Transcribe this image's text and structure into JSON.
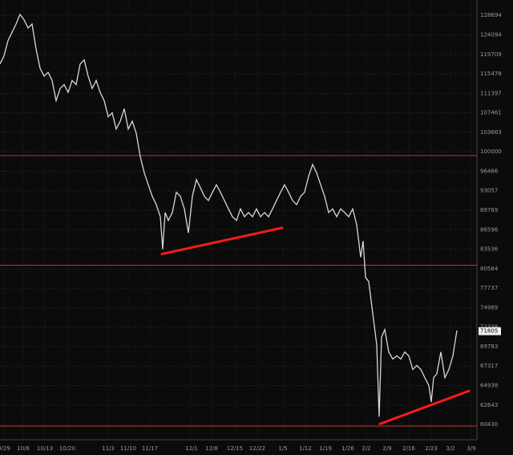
{
  "chart_data": {
    "type": "line",
    "log_y": true,
    "grid": true,
    "line_color": "#d8d8d8",
    "level_color": "#c0392b",
    "trend_color": "#ff1a1a",
    "x": [
      0,
      5,
      10,
      15,
      20,
      25,
      30,
      35,
      40,
      45,
      50,
      55,
      60,
      65,
      70,
      75,
      80,
      85,
      90,
      95,
      100,
      105,
      110,
      115,
      120,
      125,
      130,
      135,
      140,
      145,
      150,
      155,
      160,
      165,
      170,
      175,
      180,
      185,
      190,
      195,
      200,
      203,
      206,
      210,
      215,
      220,
      225,
      230,
      235,
      240,
      245,
      250,
      255,
      260,
      265,
      270,
      275,
      280,
      285,
      290,
      295,
      300,
      305,
      310,
      315,
      320,
      325,
      330,
      335,
      340,
      345,
      350,
      355,
      360,
      365,
      370,
      375,
      380,
      385,
      390,
      395,
      400,
      405,
      410,
      415,
      420,
      425,
      430,
      435,
      440,
      445,
      450,
      453,
      456,
      460,
      465,
      470,
      473,
      476,
      480,
      485,
      490,
      495,
      500,
      505,
      510,
      515,
      520,
      525,
      530,
      535,
      538,
      541,
      545,
      550,
      555,
      560,
      565,
      570
    ],
    "values": [
      117600,
      119400,
      122800,
      124700,
      126600,
      128900,
      127600,
      125700,
      126600,
      120900,
      116700,
      115000,
      115800,
      114100,
      109900,
      112400,
      113200,
      111600,
      114100,
      113200,
      117600,
      118500,
      115000,
      112400,
      114100,
      111600,
      109900,
      106700,
      107461,
      104300,
      105800,
      108300,
      104300,
      105800,
      103500,
      99100,
      96200,
      94100,
      92100,
      90700,
      88700,
      83536,
      89400,
      88100,
      89400,
      92800,
      92100,
      90000,
      86100,
      92100,
      95000,
      93600,
      92100,
      91400,
      92800,
      94100,
      92800,
      91400,
      90000,
      88700,
      88100,
      90000,
      88700,
      89400,
      88700,
      90000,
      88700,
      89400,
      88700,
      90000,
      91400,
      92800,
      94100,
      92800,
      91400,
      90700,
      92100,
      92800,
      95600,
      97700,
      96200,
      94100,
      92100,
      89400,
      90000,
      88700,
      90000,
      89400,
      88700,
      90000,
      87400,
      82300,
      84800,
      79300,
      78700,
      74200,
      70000,
      61300,
      71000,
      72000,
      69100,
      68200,
      68600,
      68200,
      69100,
      68600,
      66900,
      67400,
      66900,
      65900,
      64938,
      63000,
      65900,
      66400,
      69100,
      65900,
      66900,
      68600,
      71900
    ],
    "last_price": 71805,
    "horizontal_lines": [
      99300,
      81100,
      60250
    ],
    "trend_lines": [
      {
        "x": [
          202,
          352
        ],
        "y": [
          82800,
          86900
        ]
      },
      {
        "x": [
          474,
          585
        ],
        "y": [
          60500,
          64300
        ]
      }
    ],
    "xlim": [
      0,
      595
    ],
    "xticks": [
      {
        "value": 5,
        "label": "9/29"
      },
      {
        "value": 29,
        "label": "10/6"
      },
      {
        "value": 56,
        "label": "10/13"
      },
      {
        "value": 84,
        "label": "10/20"
      },
      {
        "value": 135,
        "label": "11/3"
      },
      {
        "value": 160,
        "label": "11/10"
      },
      {
        "value": 187,
        "label": "11/17"
      },
      {
        "value": 239,
        "label": "12/1"
      },
      {
        "value": 264,
        "label": "12/8"
      },
      {
        "value": 293,
        "label": "12/15"
      },
      {
        "value": 321,
        "label": "12/22"
      },
      {
        "value": 353,
        "label": "1/5"
      },
      {
        "value": 381,
        "label": "1/12"
      },
      {
        "value": 406,
        "label": "1/19"
      },
      {
        "value": 434,
        "label": "1/26"
      },
      {
        "value": 457,
        "label": "2/2"
      },
      {
        "value": 483,
        "label": "2/9"
      },
      {
        "value": 510,
        "label": "2/16"
      },
      {
        "value": 538,
        "label": "2/23"
      },
      {
        "value": 562,
        "label": "3/2"
      },
      {
        "value": 588,
        "label": "3/9"
      }
    ],
    "ylim": [
      58756,
      132360
    ],
    "yticks": [
      128694,
      124094,
      119709,
      115478,
      111397,
      107461,
      103663,
      100000,
      96466,
      93057,
      89769,
      86596,
      83536,
      80584,
      77737,
      74989,
      72338,
      69783,
      67317,
      64938,
      62643,
      60430
    ]
  }
}
